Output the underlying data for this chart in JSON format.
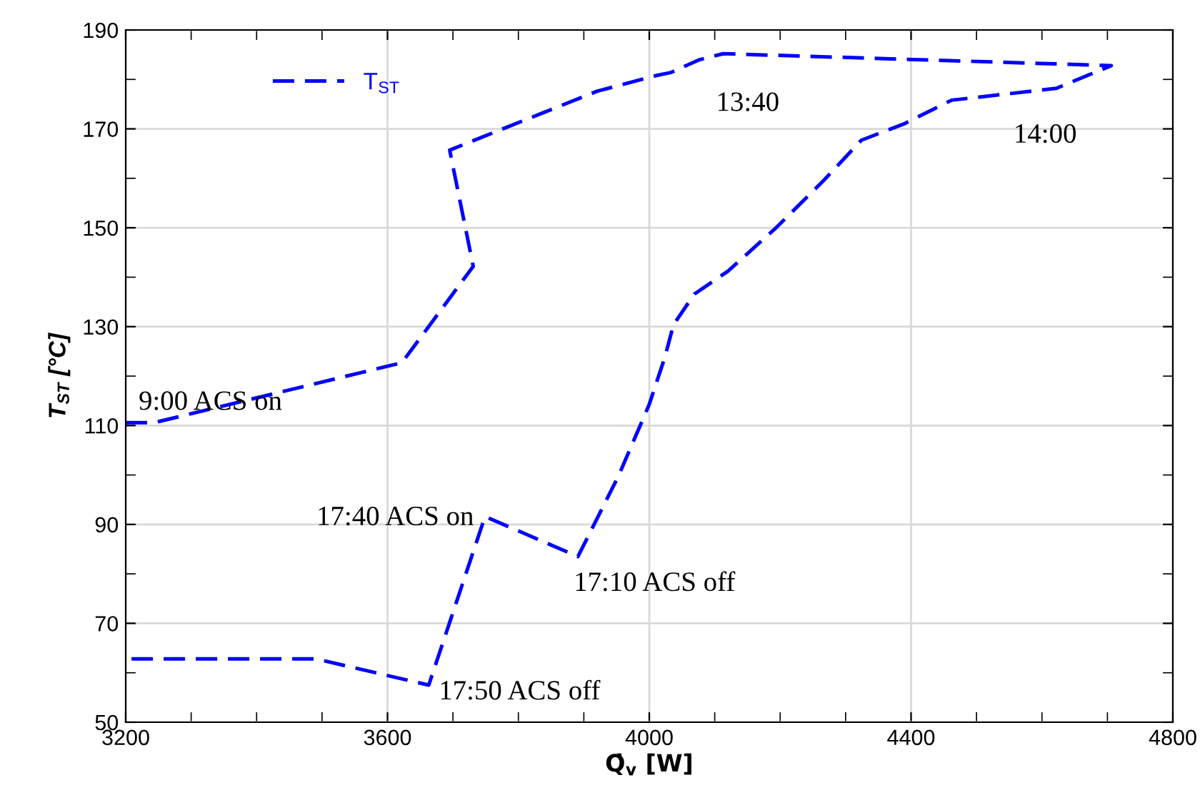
{
  "chart_data": {
    "type": "line",
    "xlabel": "Q̇$_{v}$ [W]",
    "ylabel": "T$_{ST}$ [°C]",
    "xlim": [
      3200,
      4800
    ],
    "ylim": [
      50,
      190
    ],
    "xticks": [
      3200,
      3600,
      4000,
      4400,
      4800
    ],
    "yticks": [
      50,
      70,
      90,
      110,
      130,
      150,
      170,
      190
    ],
    "grid": true,
    "legend": "top left",
    "line_style": "dashed",
    "marker": "none",
    "series": [
      {
        "name": "T$_{ST}$",
        "color": "#0000ff",
        "x": [
          3200,
          3244,
          3622,
          3731,
          3695,
          3778,
          3920,
          4011,
          4033,
          4077,
          4113,
          4706,
          4622,
          4462,
          4389,
          4324,
          4266,
          4193,
          4120,
          4069,
          4037,
          4024,
          4000,
          3953,
          3891,
          3749,
          3663,
          3491,
          3200
        ],
        "values": [
          110.6,
          110.6,
          122.7,
          142.2,
          165.7,
          170.1,
          177.6,
          180.8,
          181.4,
          184.0,
          185.2,
          182.8,
          178.2,
          175.8,
          171.0,
          167.7,
          159.5,
          149.9,
          141.2,
          136.6,
          130.4,
          123.9,
          114.3,
          99.8,
          83.5,
          91.6,
          57.5,
          62.8,
          62.8
        ]
      }
    ],
    "annotations": [
      {
        "text": "9:00 ACS on",
        "x": 3200,
        "y": 110.6
      },
      {
        "text": "13:40",
        "x": 4113,
        "y": 185.2
      },
      {
        "text": "14:00",
        "x": 4622,
        "y": 178.2
      },
      {
        "text": "17:40 ACS on",
        "x": 3749,
        "y": 91.6
      },
      {
        "text": "17:10 ACS off",
        "x": 3891,
        "y": 83.5
      },
      {
        "text": "17:50 ACS off",
        "x": 3663,
        "y": 57.5
      }
    ]
  }
}
